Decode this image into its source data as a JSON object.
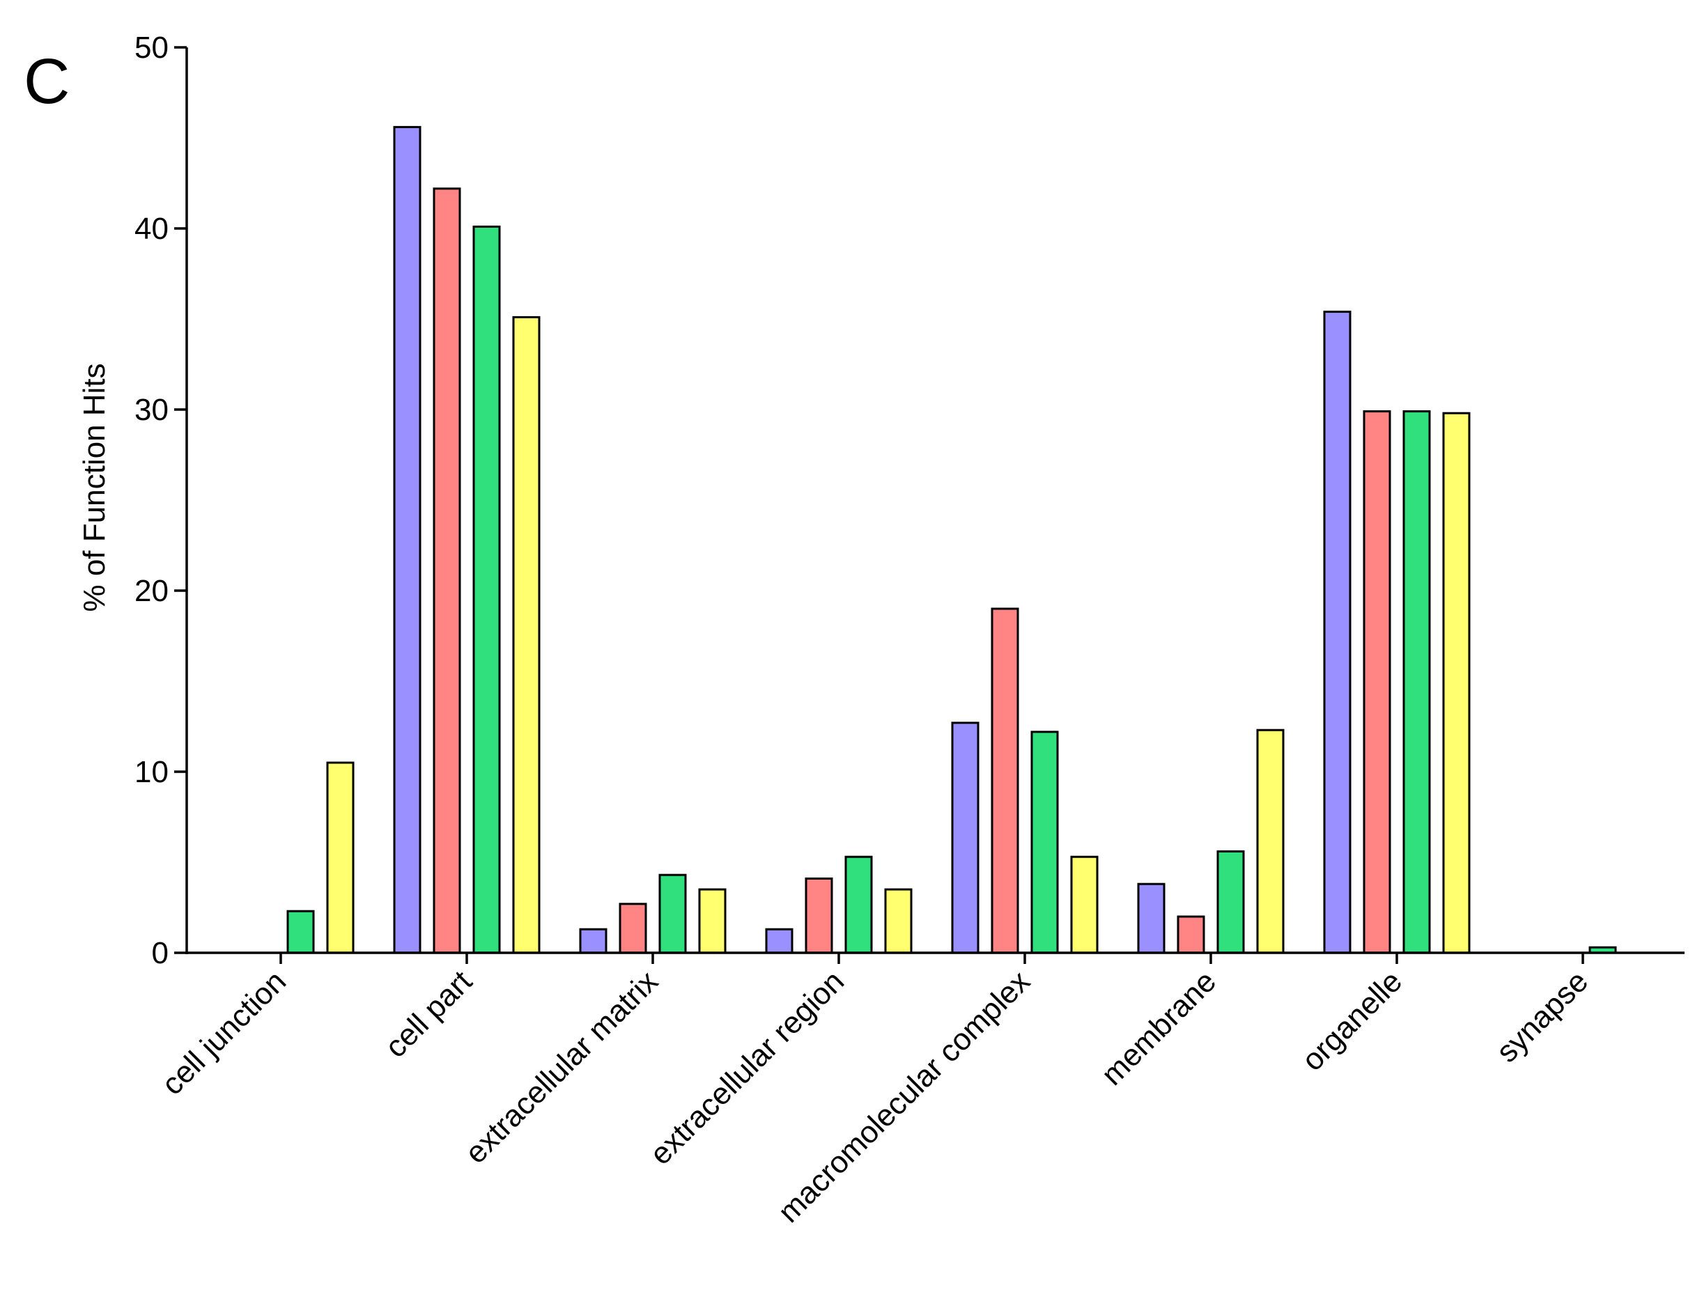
{
  "panel_label": "C",
  "colors": {
    "series_1": "#9a90ff",
    "series_2": "#ff8585",
    "series_3": "#2fe07d",
    "series_4": "#ffff70"
  },
  "chart_data": {
    "type": "bar",
    "title": "",
    "xlabel": "",
    "ylabel": "% of Function Hits",
    "ylim": [
      0,
      50
    ],
    "yticks": [
      0,
      10,
      20,
      30,
      40,
      50
    ],
    "grid": false,
    "legend": "none",
    "categories": [
      "cell junction",
      "cell part",
      "extracellular matrix",
      "extracellular region",
      "macromolecular complex",
      "membrane",
      "organelle",
      "synapse"
    ],
    "series": [
      {
        "color": "#9a90ff",
        "values": [
          0,
          45.6,
          1.3,
          1.3,
          12.7,
          3.8,
          35.4,
          0
        ]
      },
      {
        "color": "#ff8585",
        "values": [
          0,
          42.2,
          2.7,
          4.1,
          19.0,
          2.0,
          29.9,
          0
        ]
      },
      {
        "color": "#2fe07d",
        "values": [
          2.3,
          40.1,
          4.3,
          5.3,
          12.2,
          5.6,
          29.9,
          0.3
        ]
      },
      {
        "color": "#ffff70",
        "values": [
          10.5,
          35.1,
          3.5,
          3.5,
          5.3,
          12.3,
          29.8,
          0
        ]
      }
    ]
  }
}
